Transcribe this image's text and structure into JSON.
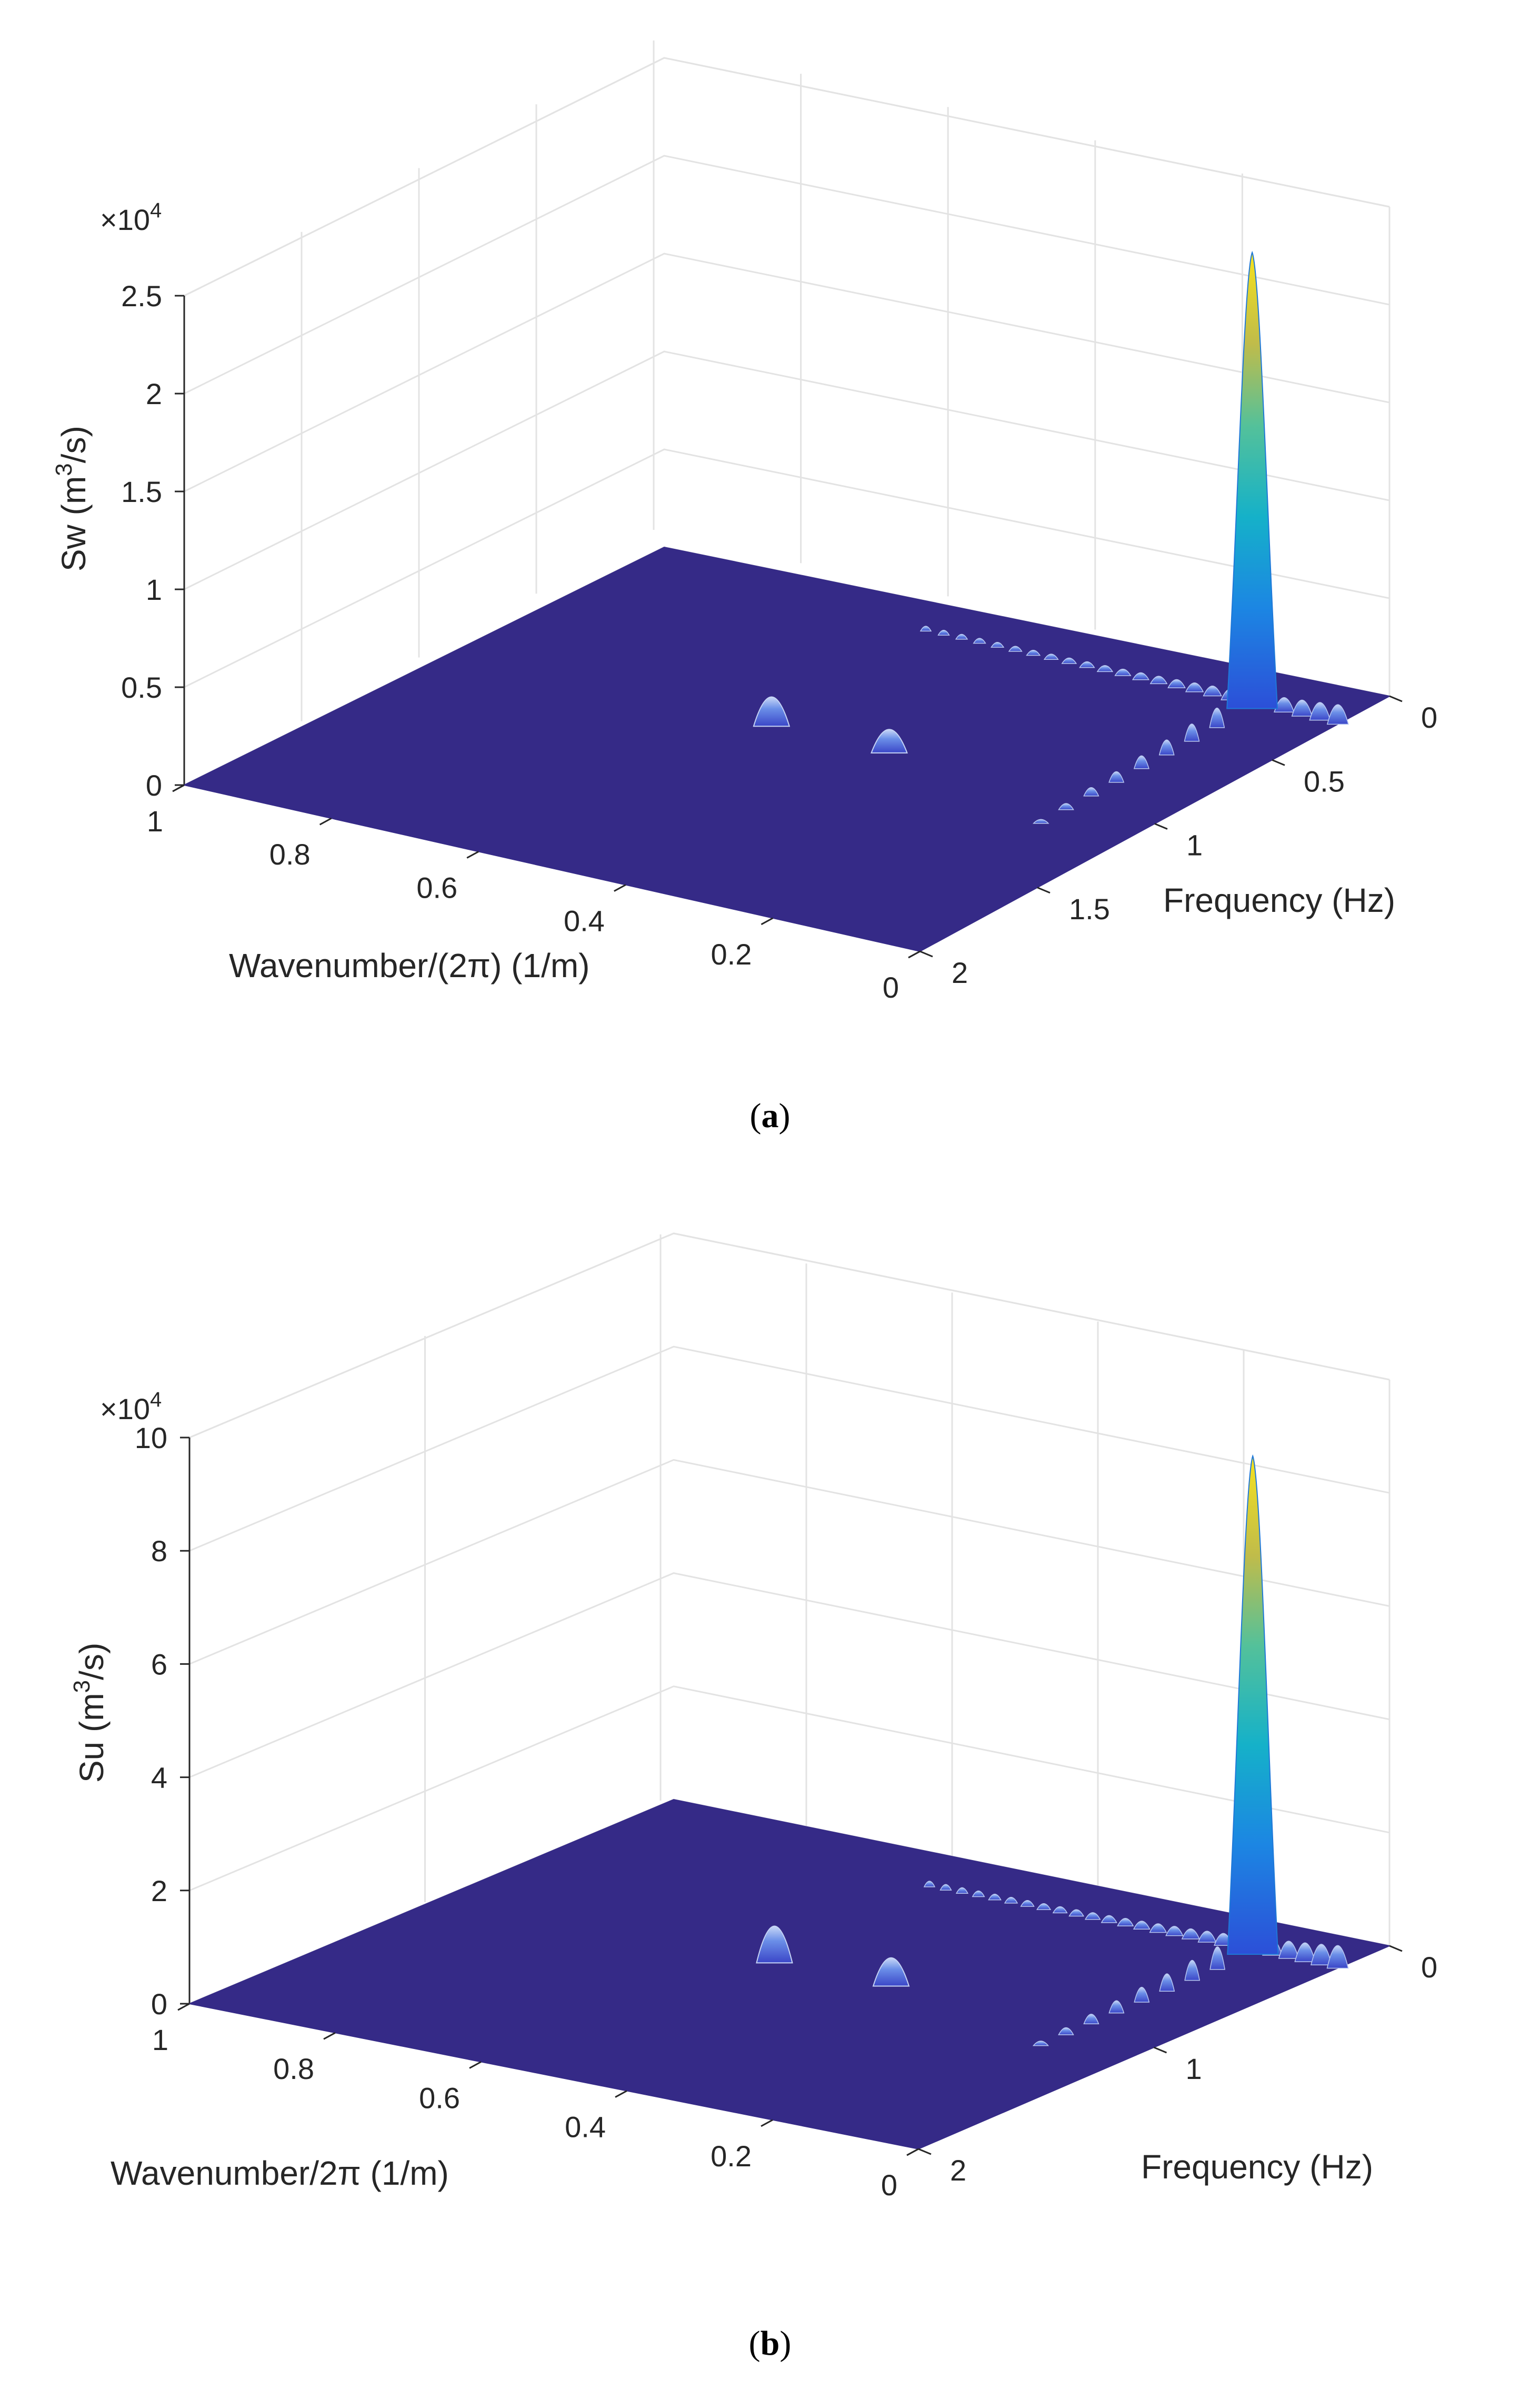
{
  "chart_data": [
    {
      "type": "surface",
      "panel": "a",
      "caption_letter": "a",
      "zlabel_prefix": "Sw (m",
      "zlabel_sup": "3",
      "zlabel_suffix": "/s)",
      "exponent_label": "×10",
      "exponent_sup": "4",
      "xlabel": "Frequency (Hz)",
      "ylabel": "Wavenumber/(2π) (1/m)",
      "xlim": [
        0,
        2
      ],
      "ylim": [
        0,
        1
      ],
      "zlim": [
        0,
        2.5
      ],
      "xticks": [
        0,
        0.5,
        1,
        1.5,
        2
      ],
      "xtick_labels": [
        "0",
        "0.5",
        "1",
        "1.5",
        "2"
      ],
      "yticks": [
        0,
        0.2,
        0.4,
        0.6,
        0.8,
        1
      ],
      "ytick_labels": [
        "0",
        "0.2",
        "0.4",
        "0.6",
        "0.8",
        "1"
      ],
      "zticks": [
        0,
        0.5,
        1,
        1.5,
        2,
        2.5
      ],
      "ztick_labels": [
        "0",
        "0.5",
        "1",
        "1.5",
        "2",
        "2.5"
      ],
      "grid": true,
      "colormap": "parula",
      "surface_color": "#352a87",
      "main_peak": {
        "frequency": 0.24,
        "wavenumber": 0.11,
        "value": 2.33
      },
      "secondary_peaks": [
        {
          "frequency": 0.24,
          "wavenumber": 0.54,
          "value": 0.15
        },
        {
          "frequency": 0.24,
          "wavenumber": 0.38,
          "value": 0.12
        }
      ],
      "ripple_ridge": {
        "wavenumber_start": 0.56,
        "wavenumber_end": 0.0,
        "frequency": 0.22,
        "count": 24,
        "max_value": 0.1
      }
    },
    {
      "type": "surface",
      "panel": "b",
      "caption_letter": "b",
      "zlabel_prefix": "Su (m",
      "zlabel_sup": "3",
      "zlabel_suffix": "/s)",
      "exponent_label": "×10",
      "exponent_sup": "4",
      "xlabel": "Frequency (Hz)",
      "ylabel": "Wavenumber/2π (1/m)",
      "xlim": [
        0,
        2
      ],
      "ylim": [
        0,
        1
      ],
      "zlim": [
        0,
        10
      ],
      "xticks": [
        0,
        1,
        2
      ],
      "xtick_labels": [
        "0",
        "1",
        "2"
      ],
      "yticks": [
        0,
        0.2,
        0.4,
        0.6,
        0.8,
        1
      ],
      "ytick_labels": [
        "0",
        "0.2",
        "0.4",
        "0.6",
        "0.8",
        "1"
      ],
      "zticks": [
        0,
        2,
        4,
        6,
        8,
        10
      ],
      "ztick_labels": [
        "0",
        "2",
        "4",
        "6",
        "8",
        "10"
      ],
      "grid": true,
      "colormap": "parula",
      "surface_color": "#352a87",
      "main_peak": {
        "frequency": 0.24,
        "wavenumber": 0.11,
        "value": 8.8
      },
      "secondary_peaks": [
        {
          "frequency": 0.24,
          "wavenumber": 0.54,
          "value": 0.65
        },
        {
          "frequency": 0.24,
          "wavenumber": 0.38,
          "value": 0.5
        }
      ],
      "ripple_ridge": {
        "wavenumber_start": 0.56,
        "wavenumber_end": 0.0,
        "frequency": 0.22,
        "count": 26,
        "max_value": 0.4
      }
    }
  ]
}
